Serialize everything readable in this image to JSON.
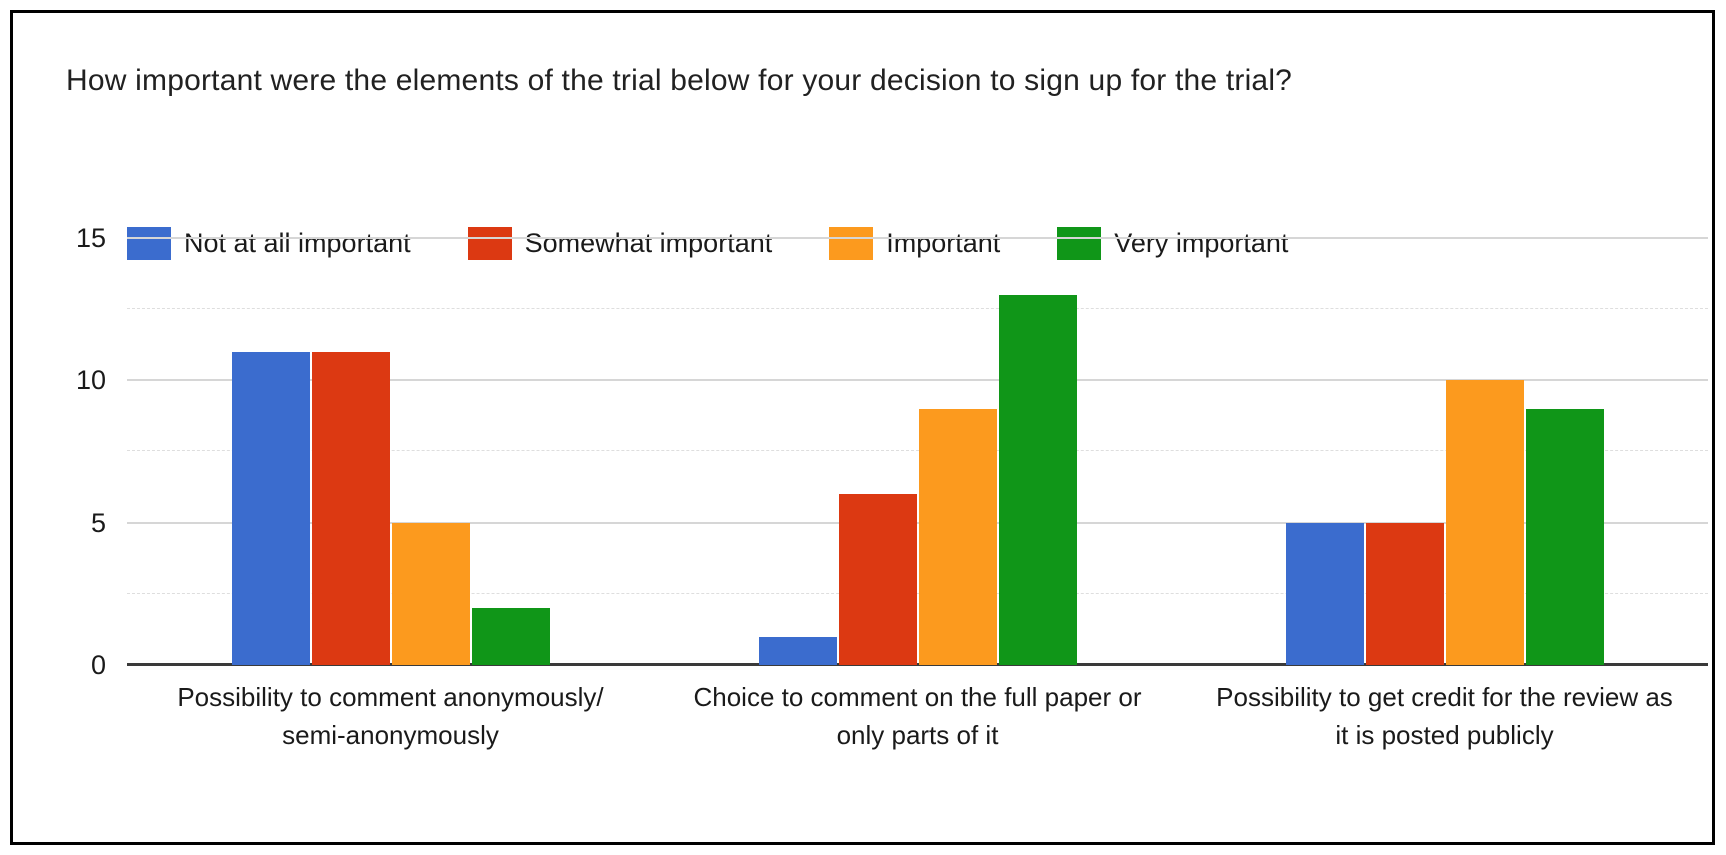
{
  "title": "How important were the elements of the trial below for your decision to sign up for the trial?",
  "colors": {
    "background": "#ffffff",
    "frame_border": "#000000",
    "axis_line": "#3a3a3a",
    "gridline_major": "#d6d6d6",
    "gridline_minor": "#dedede",
    "text": "#212121"
  },
  "chart_data": {
    "type": "bar",
    "title": "How important were the elements of the trial below for your decision to sign up for the trial?",
    "xlabel": "",
    "ylabel": "",
    "ylim": [
      0,
      15
    ],
    "yticks": [
      0,
      5,
      10,
      15
    ],
    "minor_gridlines": [
      2.5,
      7.5,
      12.5
    ],
    "grid": true,
    "legend_position": "top-left-inside",
    "categories": [
      "Possibility to comment anonymously/ semi-anonymously",
      "Choice to comment on the full paper or only parts of it",
      "Possibility to get credit for the review as it is posted publicly"
    ],
    "categories_lines": [
      [
        "Possibility to comment anonymously/",
        "semi-anonymously"
      ],
      [
        "Choice to comment on the full paper or",
        "only parts of it"
      ],
      [
        "Possibility to get credit for the review as",
        "it is posted publicly"
      ]
    ],
    "series": [
      {
        "name": "Not at all important",
        "color": "#3b6cce",
        "values": [
          11,
          1,
          5
        ]
      },
      {
        "name": "Somewhat important",
        "color": "#dc3912",
        "values": [
          11,
          6,
          5
        ]
      },
      {
        "name": "Important",
        "color": "#fc9a1e",
        "values": [
          5,
          9,
          10
        ]
      },
      {
        "name": "Very important",
        "color": "#109618",
        "values": [
          2,
          13,
          9
        ]
      }
    ]
  }
}
